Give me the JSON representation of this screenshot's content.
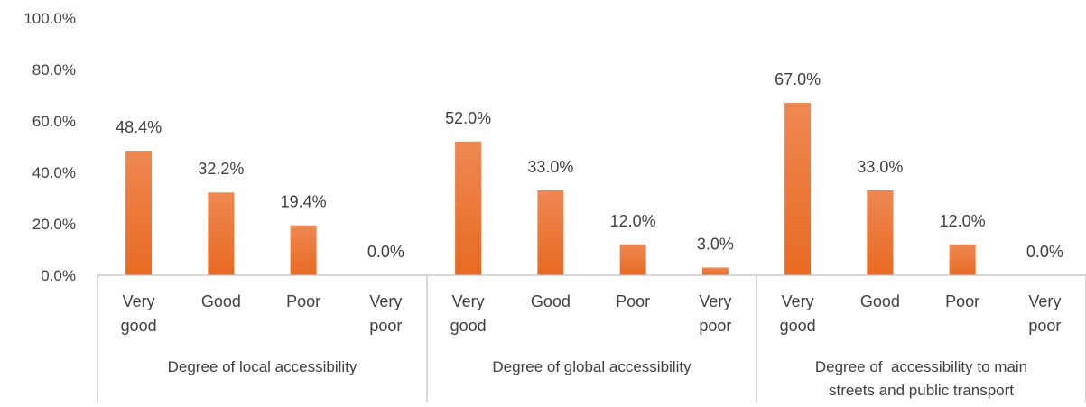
{
  "chart_data": {
    "type": "bar",
    "title": "",
    "xlabel": "",
    "ylabel": "",
    "ylim": [
      0,
      100
    ],
    "yticks": [
      "0.0%",
      "20.0%",
      "40.0%",
      "60.0%",
      "80.0%",
      "100.0%"
    ],
    "grid": false,
    "legend": "none",
    "bar_color": "#ED7D31",
    "groups": [
      {
        "label": [
          "Degree of local accessibility"
        ],
        "categories": [
          [
            "Very",
            "good"
          ],
          [
            "Good"
          ],
          [
            "Poor"
          ],
          [
            "Very",
            "poor"
          ]
        ],
        "values": [
          48.4,
          32.2,
          19.4,
          0.0
        ],
        "data_labels": [
          "48.4%",
          "32.2%",
          "19.4%",
          "0.0%"
        ]
      },
      {
        "label": [
          "Degree of global accessibility"
        ],
        "categories": [
          [
            "Very",
            "good"
          ],
          [
            "Good"
          ],
          [
            "Poor"
          ],
          [
            "Very",
            "poor"
          ]
        ],
        "values": [
          52.0,
          33.0,
          12.0,
          3.0
        ],
        "data_labels": [
          "52.0%",
          "33.0%",
          "12.0%",
          "3.0%"
        ]
      },
      {
        "label": [
          "Degree of  accessibility to main",
          "streets and public transport"
        ],
        "categories": [
          [
            "Very",
            "good"
          ],
          [
            "Good"
          ],
          [
            "Poor"
          ],
          [
            "Very",
            "poor"
          ]
        ],
        "values": [
          67.0,
          33.0,
          12.0,
          0.0
        ],
        "data_labels": [
          "67.0%",
          "33.0%",
          "12.0%",
          "0.0%"
        ]
      }
    ]
  }
}
